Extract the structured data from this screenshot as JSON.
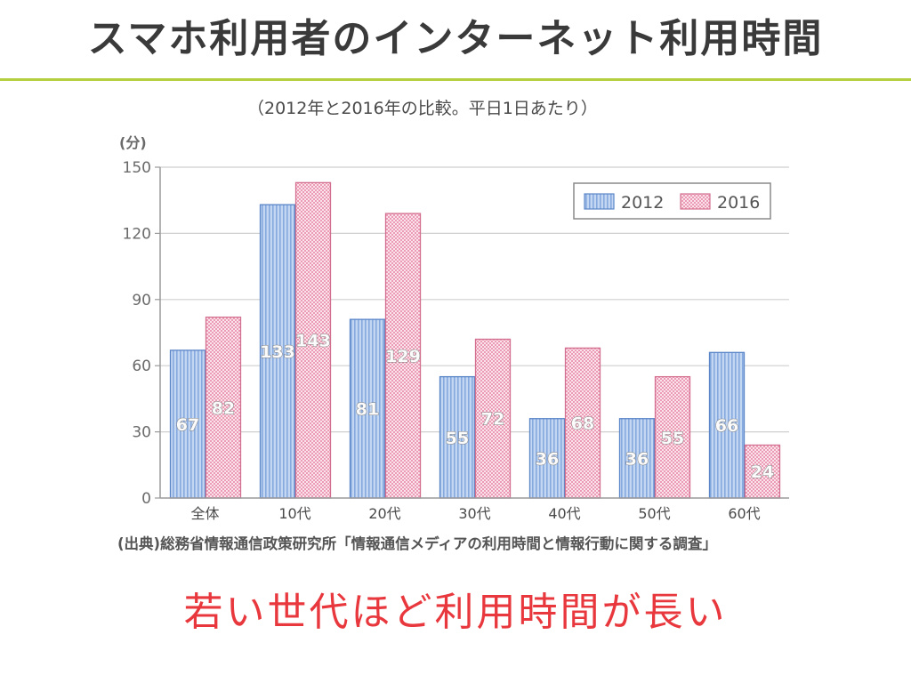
{
  "slide": {
    "title": "スマホ利用者のインターネット利用時間",
    "source": "(出典)総務省情報通信政策研究所「情報通信メディアの利用時間と情報行動に関する調査」",
    "conclusion": "若い世代ほど利用時間が長い"
  },
  "colors": {
    "title_text": "#3a3a3a",
    "accent_rule": "#b4cf3f",
    "conclusion_text": "#e8383d"
  },
  "chart_data": {
    "type": "bar",
    "title": "（2012年と2016年の比較。平日1日あたり）",
    "xlabel": "",
    "ylabel": "(分)",
    "ylim": [
      0,
      150
    ],
    "yticks": [
      0,
      30,
      60,
      90,
      120,
      150
    ],
    "grid": true,
    "legend": "top-right",
    "categories": [
      "全体",
      "10代",
      "20代",
      "30代",
      "40代",
      "50代",
      "60代"
    ],
    "series": [
      {
        "name": "2012",
        "values": [
          67,
          133,
          81,
          55,
          36,
          36,
          66
        ],
        "color": "#c3d6f2",
        "stripe": "#86a9df",
        "border": "#5b86c8"
      },
      {
        "name": "2016",
        "values": [
          82,
          143,
          129,
          72,
          68,
          55,
          24
        ],
        "color": "#fbe3eb",
        "stripe": "#ec9bb5",
        "border": "#d4708f"
      }
    ]
  }
}
